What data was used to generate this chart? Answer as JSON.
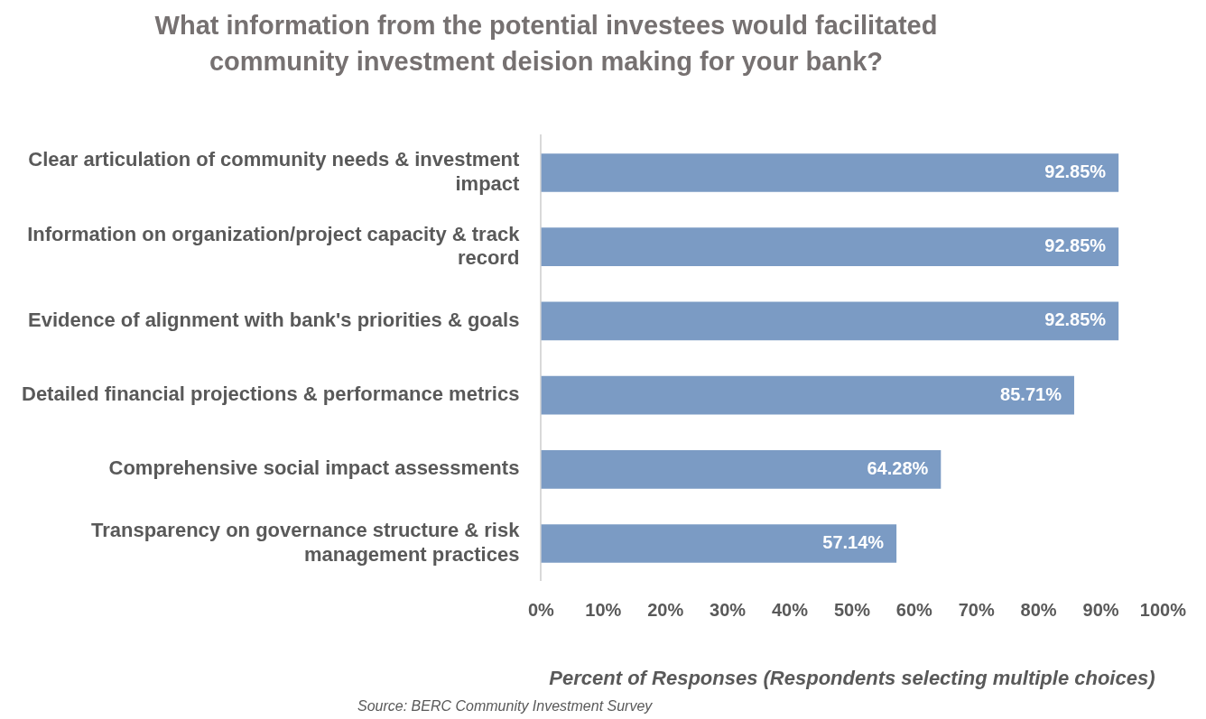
{
  "chart_data": {
    "type": "bar",
    "orientation": "horizontal",
    "title": "What information from the potential investees would facilitated community investment deision making for your bank?",
    "xlabel": "Percent of Responses (Respondents selecting multiple choices)",
    "categories": [
      "Clear articulation of community needs & investment impact",
      "Information on organization/project capacity & track record",
      "Evidence of alignment with bank's priorities & goals",
      "Detailed financial projections & performance metrics",
      "Comprehensive social impact assessments",
      "Transparency on governance structure & risk management practices"
    ],
    "values": [
      92.85,
      92.85,
      92.85,
      85.71,
      64.28,
      57.14
    ],
    "value_labels": [
      "92.85%",
      "92.85%",
      "92.85%",
      "85.71%",
      "64.28%",
      "57.14%"
    ],
    "color": "#7b9bc4",
    "xlim": [
      0,
      100
    ],
    "xticks": [
      {
        "value": 0,
        "label": "0%"
      },
      {
        "value": 10,
        "label": "10%"
      },
      {
        "value": 20,
        "label": "20%"
      },
      {
        "value": 30,
        "label": "30%"
      },
      {
        "value": 40,
        "label": "40%"
      },
      {
        "value": 50,
        "label": "50%"
      },
      {
        "value": 60,
        "label": "60%"
      },
      {
        "value": 70,
        "label": "70%"
      },
      {
        "value": 80,
        "label": "80%"
      },
      {
        "value": 90,
        "label": "90%"
      },
      {
        "value": 100,
        "label": "100%"
      }
    ],
    "grid": false,
    "legend": false,
    "annotations": [
      "Source: BERC Community Investment Survey"
    ]
  }
}
